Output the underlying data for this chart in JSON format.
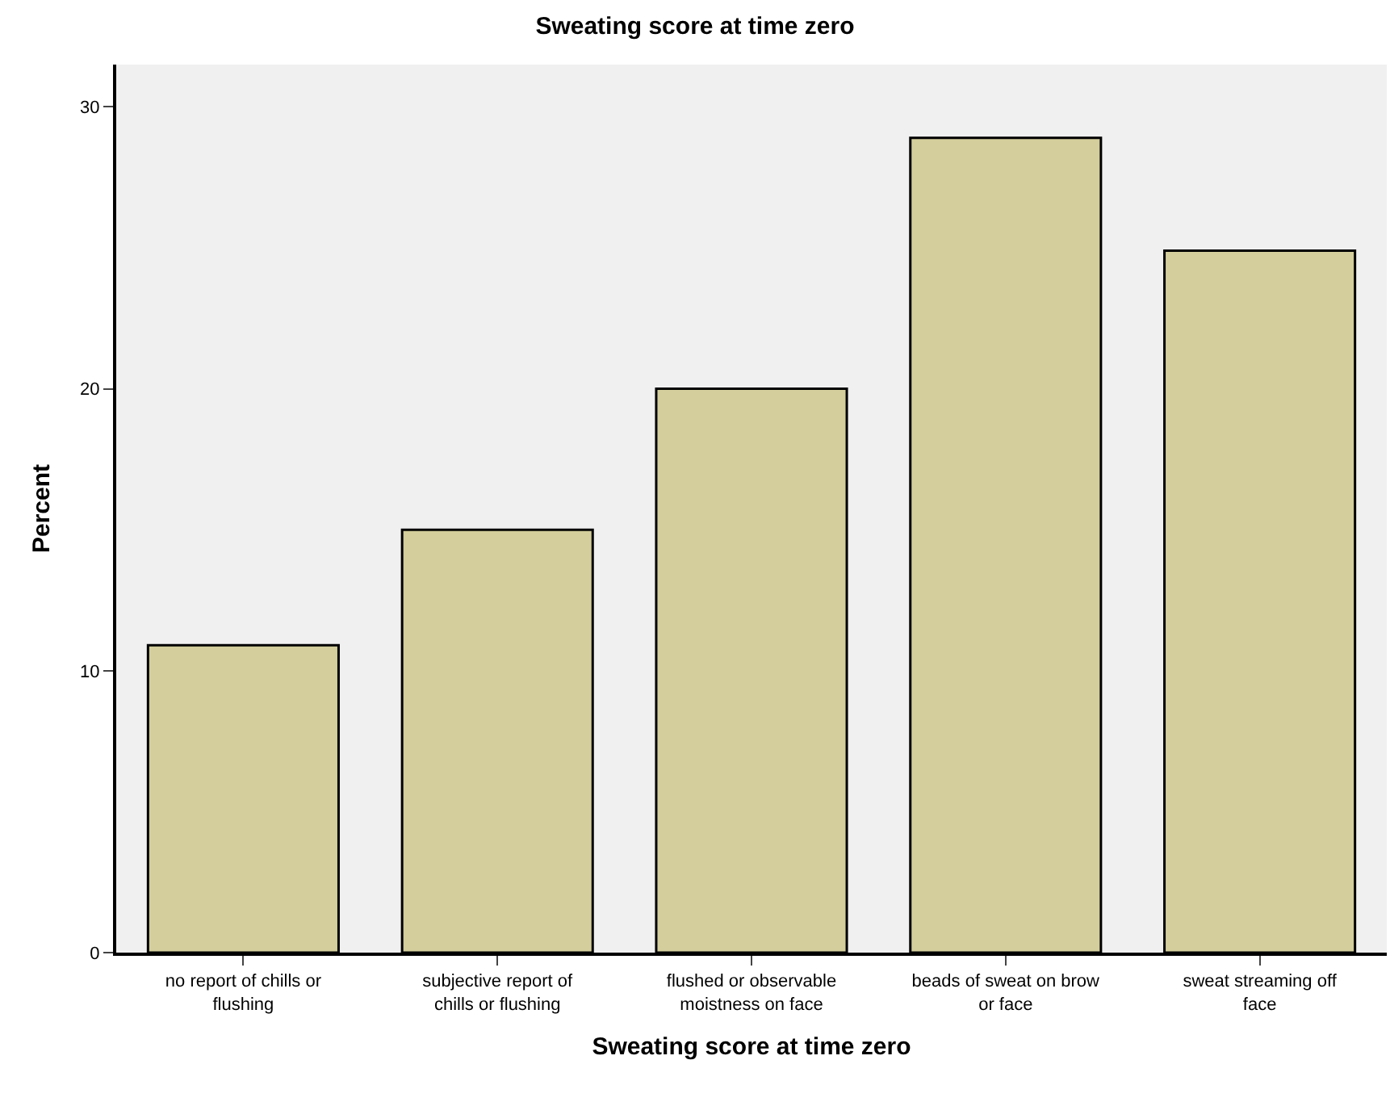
{
  "chart_data": {
    "type": "bar",
    "title": "Sweating score at time zero",
    "xlabel": "Sweating score at time zero",
    "ylabel": "Percent",
    "categories": [
      "no report of chills or flushing",
      "subjective report of chills or flushing",
      "flushed or observable moistness on face",
      "beads of sweat on brow or face",
      "sweat streaming off face"
    ],
    "values": [
      10.9,
      15.0,
      20.0,
      28.9,
      24.9
    ],
    "color": "#d3ce9b",
    "ylim": [
      0,
      31.5
    ],
    "yticks": [
      0,
      10,
      20,
      30
    ],
    "grid": false,
    "legend": false
  }
}
